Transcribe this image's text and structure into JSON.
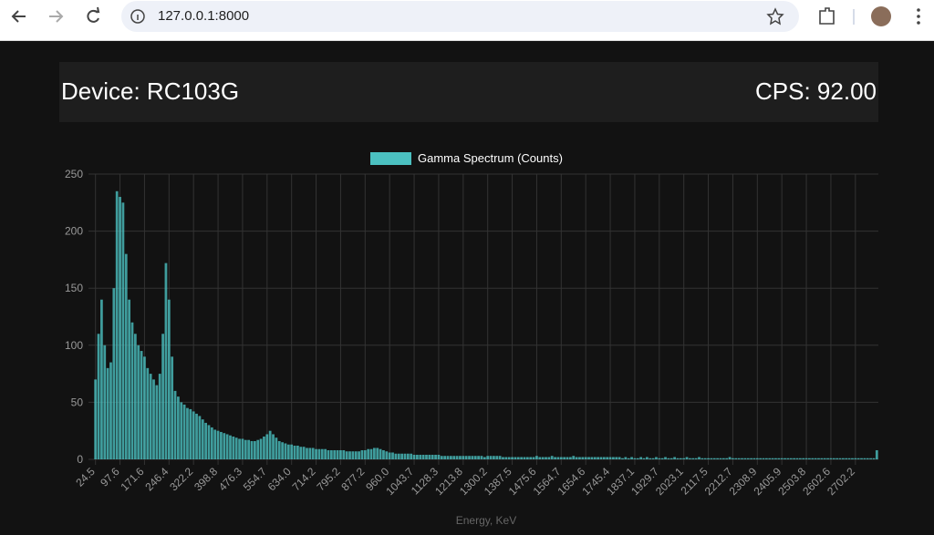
{
  "browser": {
    "url": "127.0.0.1:8000"
  },
  "header": {
    "device": "Device: RC103G",
    "cps": "CPS: 92.00"
  },
  "chart_data": {
    "type": "bar",
    "x_label": "Energy, KeV",
    "grid": true,
    "ylim": [
      0,
      250
    ],
    "yticks": [
      0,
      50,
      100,
      150,
      200,
      250
    ],
    "categories": [
      "24.5",
      null,
      null,
      null,
      null,
      null,
      null,
      null,
      "97.6",
      null,
      null,
      null,
      null,
      null,
      null,
      null,
      "171.6",
      null,
      null,
      null,
      null,
      null,
      null,
      null,
      "246.4",
      null,
      null,
      null,
      null,
      null,
      null,
      null,
      "322.2",
      null,
      null,
      null,
      null,
      null,
      null,
      null,
      "398.8",
      null,
      null,
      null,
      null,
      null,
      null,
      null,
      "476.3",
      null,
      null,
      null,
      null,
      null,
      null,
      null,
      "554.7",
      null,
      null,
      null,
      null,
      null,
      null,
      null,
      "634.0",
      null,
      null,
      null,
      null,
      null,
      null,
      null,
      "714.2",
      null,
      null,
      null,
      null,
      null,
      null,
      null,
      "795.2",
      null,
      null,
      null,
      null,
      null,
      null,
      null,
      "877.2",
      null,
      null,
      null,
      null,
      null,
      null,
      null,
      "960.0",
      null,
      null,
      null,
      null,
      null,
      null,
      null,
      "1043.7",
      null,
      null,
      null,
      null,
      null,
      null,
      null,
      "1128.3",
      null,
      null,
      null,
      null,
      null,
      null,
      null,
      "1213.8",
      null,
      null,
      null,
      null,
      null,
      null,
      null,
      "1300.2",
      null,
      null,
      null,
      null,
      null,
      null,
      null,
      "1387.5",
      null,
      null,
      null,
      null,
      null,
      null,
      null,
      "1475.6",
      null,
      null,
      null,
      null,
      null,
      null,
      null,
      "1564.7",
      null,
      null,
      null,
      null,
      null,
      null,
      null,
      "1654.6",
      null,
      null,
      null,
      null,
      null,
      null,
      null,
      "1745.4",
      null,
      null,
      null,
      null,
      null,
      null,
      null,
      "1837.1",
      null,
      null,
      null,
      null,
      null,
      null,
      null,
      "1929.7",
      null,
      null,
      null,
      null,
      null,
      null,
      null,
      "2023.1",
      null,
      null,
      null,
      null,
      null,
      null,
      null,
      "2117.5",
      null,
      null,
      null,
      null,
      null,
      null,
      null,
      "2212.7",
      null,
      null,
      null,
      null,
      null,
      null,
      null,
      "2308.9",
      null,
      null,
      null,
      null,
      null,
      null,
      null,
      "2405.9",
      null,
      null,
      null,
      null,
      null,
      null,
      null,
      "2503.8",
      null,
      null,
      null,
      null,
      null,
      null,
      null,
      "2602.6",
      null,
      null,
      null,
      null,
      null,
      null,
      null,
      "2702.2",
      null,
      null,
      null,
      null,
      null,
      null,
      null
    ],
    "series": [
      {
        "name": "Gamma Spectrum (Counts)",
        "color": "#4bc0c0",
        "values": [
          70,
          110,
          140,
          100,
          80,
          85,
          150,
          235,
          230,
          225,
          180,
          140,
          120,
          110,
          100,
          95,
          90,
          80,
          75,
          70,
          65,
          75,
          110,
          172,
          140,
          90,
          60,
          55,
          50,
          48,
          45,
          44,
          42,
          40,
          38,
          35,
          32,
          30,
          28,
          26,
          25,
          24,
          23,
          22,
          21,
          20,
          19,
          18,
          18,
          17,
          17,
          16,
          16,
          17,
          18,
          20,
          22,
          25,
          22,
          19,
          16,
          15,
          14,
          13,
          13,
          12,
          12,
          11,
          11,
          10,
          10,
          10,
          9,
          9,
          9,
          9,
          8,
          8,
          8,
          8,
          8,
          8,
          7,
          7,
          7,
          7,
          7,
          8,
          8,
          9,
          9,
          10,
          10,
          9,
          8,
          7,
          6,
          6,
          5,
          5,
          5,
          5,
          5,
          5,
          4,
          4,
          4,
          4,
          4,
          4,
          4,
          4,
          4,
          3,
          3,
          3,
          3,
          3,
          3,
          3,
          3,
          3,
          3,
          3,
          3,
          3,
          3,
          2,
          3,
          3,
          3,
          3,
          3,
          2,
          2,
          2,
          2,
          2,
          2,
          2,
          2,
          2,
          2,
          2,
          3,
          2,
          2,
          2,
          2,
          3,
          2,
          2,
          2,
          2,
          2,
          2,
          3,
          2,
          2,
          2,
          2,
          2,
          2,
          2,
          2,
          2,
          2,
          2,
          2,
          2,
          2,
          2,
          1,
          2,
          1,
          2,
          1,
          1,
          2,
          1,
          2,
          1,
          1,
          2,
          1,
          1,
          2,
          1,
          1,
          2,
          1,
          1,
          1,
          2,
          1,
          1,
          1,
          2,
          1,
          1,
          1,
          1,
          1,
          1,
          1,
          1,
          1,
          2,
          1,
          1,
          1,
          1,
          1,
          1,
          1,
          1,
          1,
          1,
          1,
          1,
          1,
          1,
          1,
          1,
          1,
          1,
          1,
          1,
          1,
          1,
          1,
          1,
          1,
          1,
          1,
          1,
          1,
          1,
          1,
          1,
          1,
          1,
          1,
          1,
          1,
          1,
          1,
          1,
          1,
          1,
          1,
          1,
          1,
          1,
          1,
          8
        ]
      }
    ]
  }
}
